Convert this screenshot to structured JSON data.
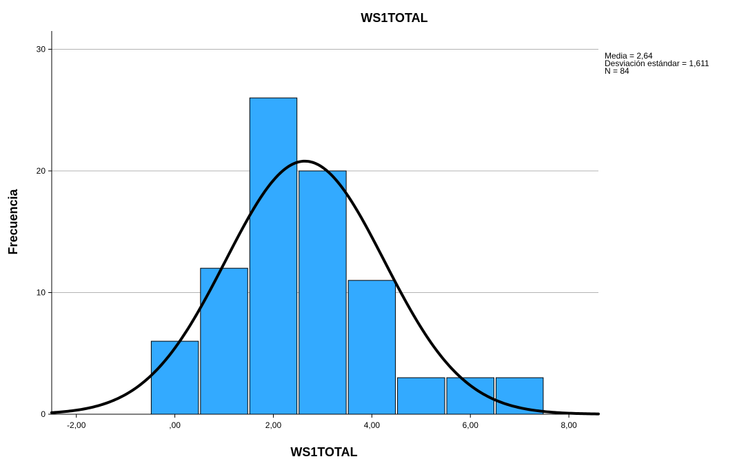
{
  "chart_data": {
    "type": "bar",
    "title": "WS1TOTAL",
    "xlabel": "WS1TOTAL",
    "ylabel": "Frecuencia",
    "xlim": [
      -2.5,
      8.6
    ],
    "ylim": [
      0,
      31.5
    ],
    "x_ticks": [
      {
        "value": -2,
        "label": "-2,00"
      },
      {
        "value": 0,
        "label": ",00"
      },
      {
        "value": 2,
        "label": "2,00"
      },
      {
        "value": 4,
        "label": "4,00"
      },
      {
        "value": 6,
        "label": "6,00"
      },
      {
        "value": 8,
        "label": "8,00"
      }
    ],
    "y_ticks": [
      {
        "value": 0,
        "label": "0"
      },
      {
        "value": 10,
        "label": "10"
      },
      {
        "value": 20,
        "label": "20"
      },
      {
        "value": 30,
        "label": "30"
      }
    ],
    "grid": "horizontal",
    "bins": [
      {
        "start": -0.5,
        "end": 0.5,
        "count": 6
      },
      {
        "start": 0.5,
        "end": 1.5,
        "count": 12
      },
      {
        "start": 1.5,
        "end": 2.5,
        "count": 26
      },
      {
        "start": 2.5,
        "end": 3.5,
        "count": 20
      },
      {
        "start": 3.5,
        "end": 4.5,
        "count": 11
      },
      {
        "start": 4.5,
        "end": 5.5,
        "count": 3
      },
      {
        "start": 5.5,
        "end": 6.5,
        "count": 3
      },
      {
        "start": 6.5,
        "end": 7.5,
        "count": 3
      }
    ],
    "normal_curve": {
      "mean": 2.64,
      "sd": 1.611,
      "n": 84,
      "bin_width": 1
    },
    "stats_lines": [
      "Media = 2,64",
      "Desviación estándar = 1,611",
      "N = 84"
    ],
    "colors": {
      "bar": "#33aaff",
      "bar_stroke": "#000000",
      "curve": "#000000",
      "grid": "#b3b3b3"
    }
  }
}
